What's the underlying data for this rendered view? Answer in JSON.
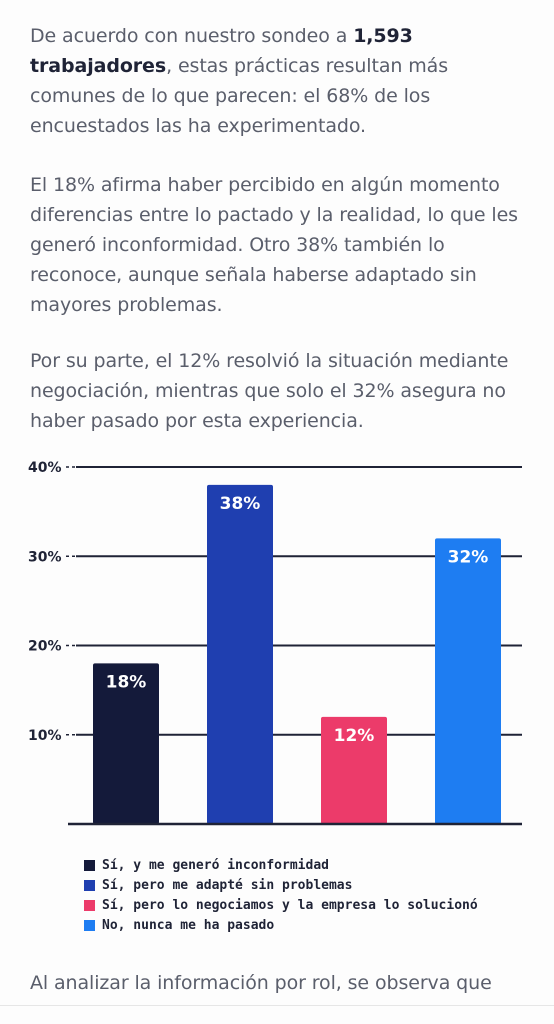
{
  "article": {
    "p1_pre": "De acuerdo con nuestro sondeo a ",
    "p1_bold": "1,593 trabajadores",
    "p1_post": ", estas prácticas resultan más comunes de lo que parecen: el 68% de los encuestados las ha experimentado.",
    "p2": "El 18% afirma haber percibido en algún momento diferencias entre lo pactado y la realidad, lo que les generó inconformidad. Otro 38% también lo reconoce, aunque señala haberse adaptado sin mayores problemas.",
    "p3": "Por su parte, el 12% resolvió la situación mediante negociación, mientras que solo el 32% asegura no haber pasado por esta experiencia.",
    "p4": "Al analizar la información por rol, se observa que"
  },
  "colors": {
    "dark_navy": "#141a3a",
    "royal_blue": "#1f3fb0",
    "pink": "#ec3b6a",
    "bright_blue": "#1e7df2",
    "grid": "#1f2336"
  },
  "chart_data": {
    "type": "bar",
    "categories": [
      "Sí, y me generó inconformidad",
      "Sí, pero me adapté sin problemas",
      "Sí, pero lo negociamos y la empresa lo solucionó",
      "No, nunca me ha pasado"
    ],
    "values": [
      18,
      38,
      12,
      32
    ],
    "value_labels": [
      "18%",
      "38%",
      "12%",
      "32%"
    ],
    "bar_colors": [
      "#141a3a",
      "#1f3fb0",
      "#ec3b6a",
      "#1e7df2"
    ],
    "yticks": [
      "10%",
      "20%",
      "30%",
      "40%"
    ],
    "ytick_values": [
      10,
      20,
      30,
      40
    ],
    "ylim": [
      0,
      40
    ],
    "grid": true,
    "legend_position": "bottom-left",
    "title": "",
    "xlabel": "",
    "ylabel": ""
  }
}
